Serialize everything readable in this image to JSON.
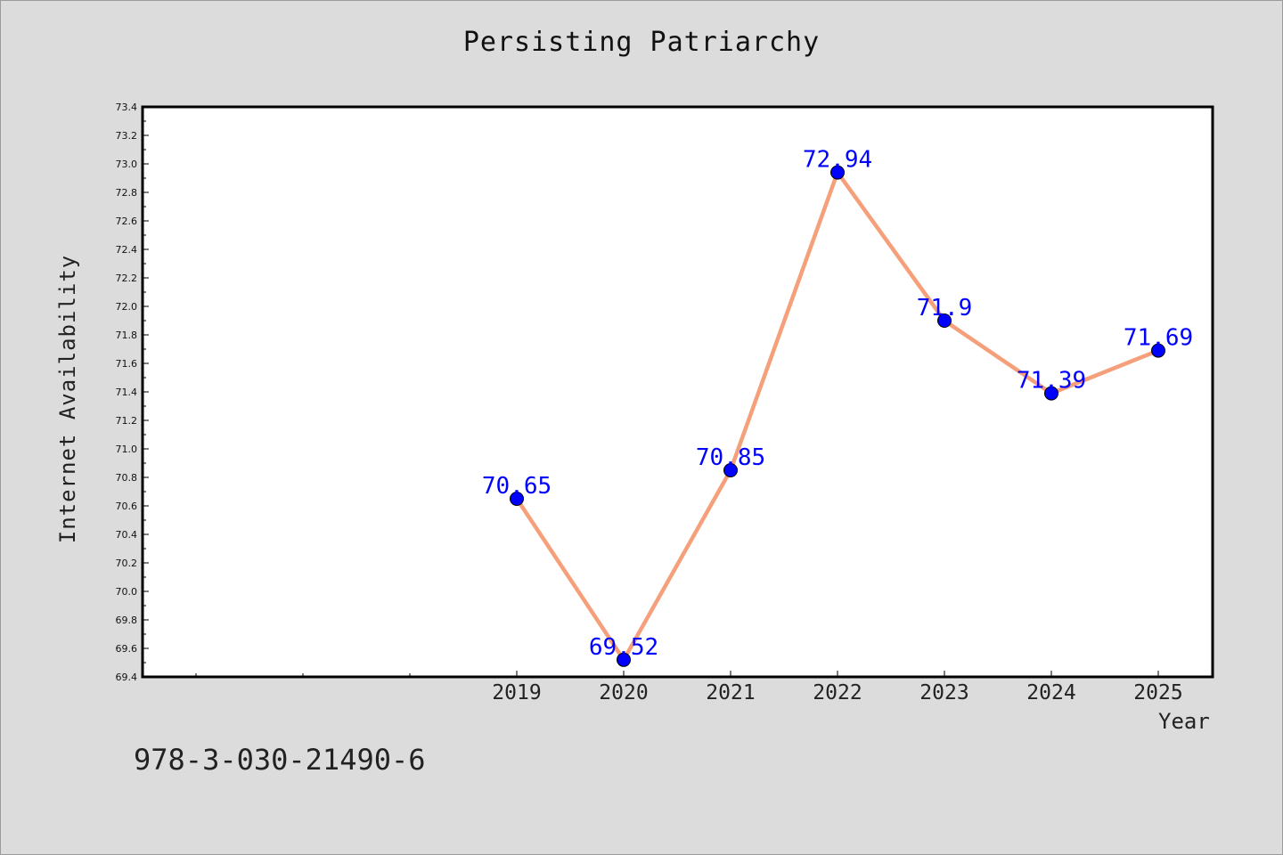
{
  "chart_data": {
    "type": "line",
    "title": "Persisting Patriarchy",
    "xlabel": "Year",
    "ylabel": "Internet Availability",
    "categories": [
      "2019",
      "2020",
      "2021",
      "2022",
      "2023",
      "2024",
      "2025"
    ],
    "series": [
      {
        "values": [
          70.65,
          69.52,
          70.85,
          72.94,
          71.9,
          71.39,
          71.69
        ],
        "data_labels": [
          "70.65",
          "69.52",
          "70.85",
          "72.94",
          "71.9",
          "71.39",
          "71.69"
        ]
      }
    ],
    "ylim": [
      69.4,
      73.4
    ],
    "y_ticks": [
      "69.4",
      "69.6",
      "69.8",
      "70.0",
      "70.2",
      "70.4",
      "70.6",
      "70.8",
      "71.0",
      "71.2",
      "71.4",
      "71.6",
      "71.8",
      "72.0",
      "72.2",
      "72.4",
      "72.6",
      "72.8",
      "73.0",
      "73.2",
      "73.4"
    ],
    "grid": false,
    "colors": {
      "line": "#f5a07a",
      "marker": "#0000ff",
      "data_label": "#0000ff",
      "plot_background": "#ffffff",
      "page_background": "#dcdcdc"
    }
  },
  "footer": {
    "code": "978-3-030-21490-6"
  }
}
